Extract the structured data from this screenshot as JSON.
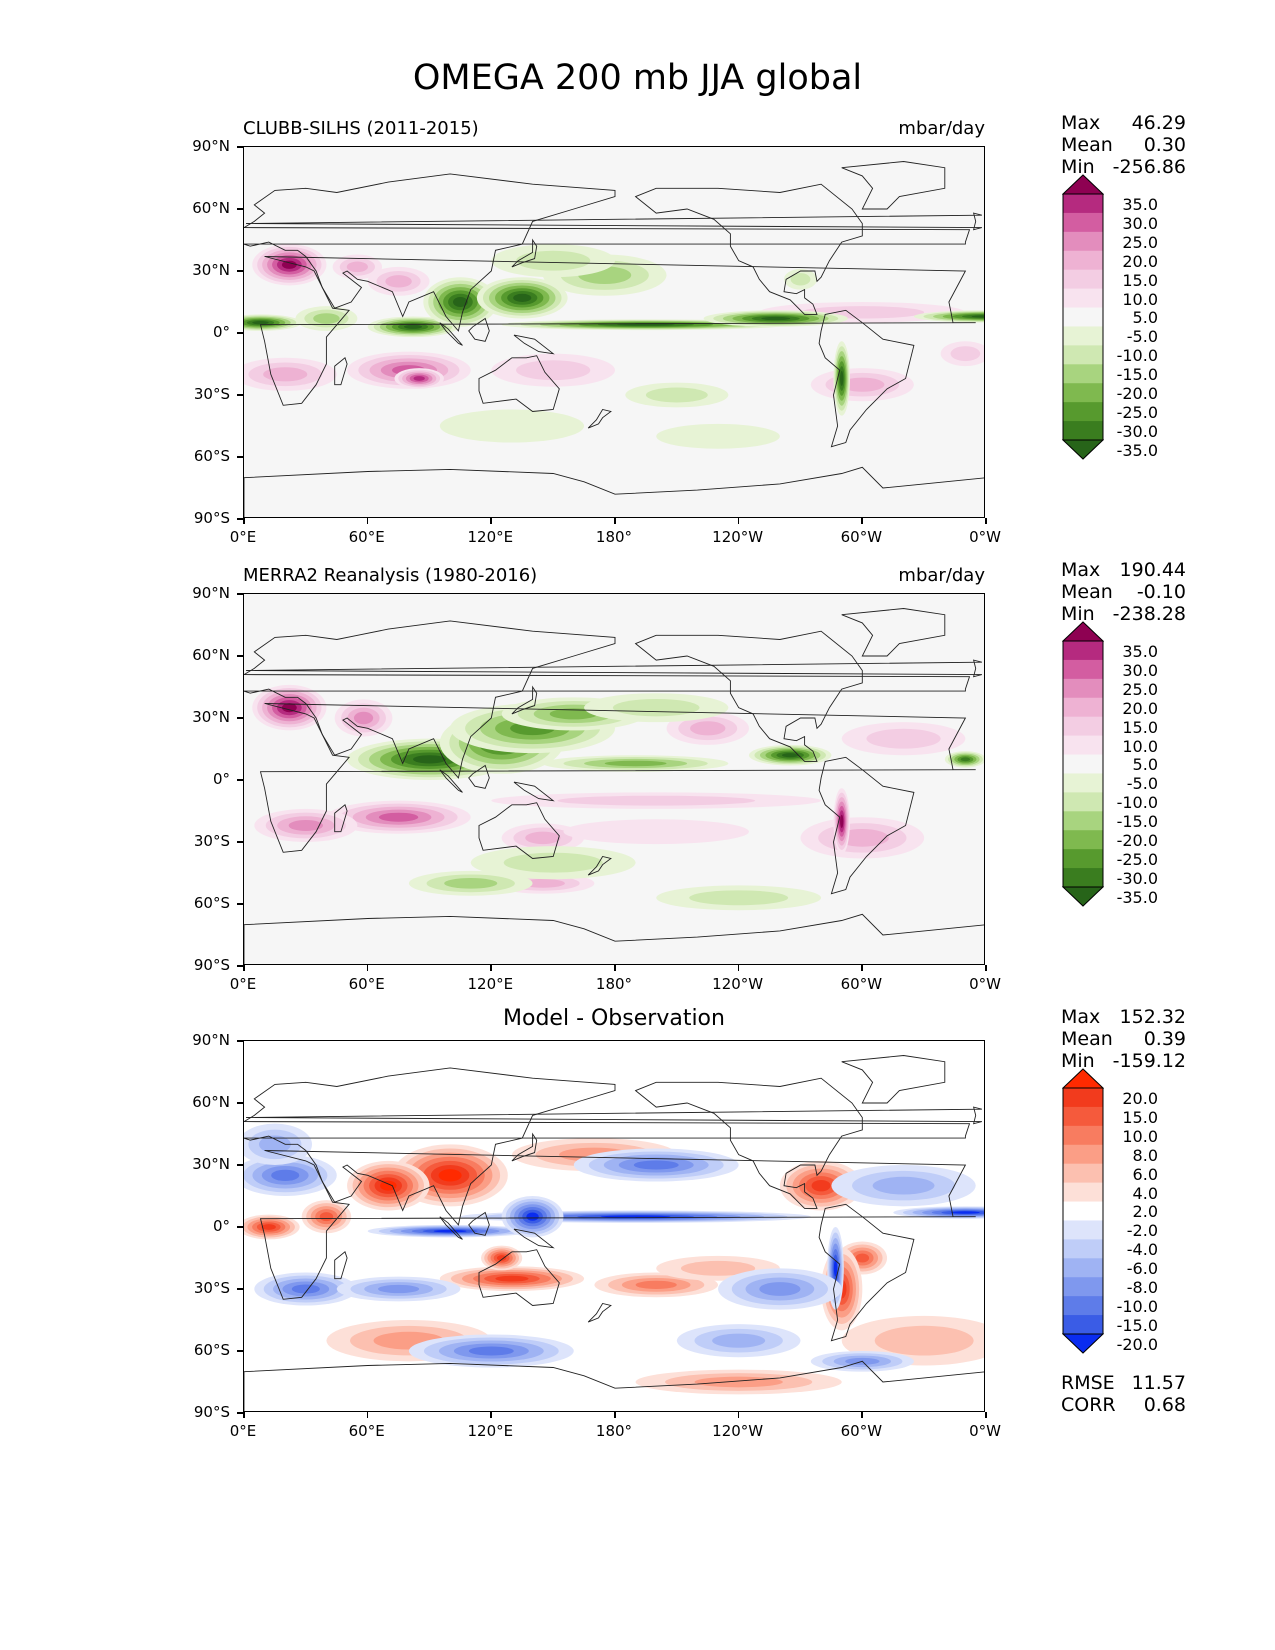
{
  "chart_data": [
    {
      "type": "heatmap",
      "title": "OMEGA 200 mb JJA global",
      "panel_title": "CLUBB-SILHS (2011-2015)",
      "units": "mbar/day",
      "stats": {
        "max_label": "Max",
        "max": "46.29",
        "mean_label": "Mean",
        "mean": "0.30",
        "min_label": "Min",
        "min": "-256.86"
      },
      "colorbar_levels": [
        "35.0",
        "30.0",
        "25.0",
        "20.0",
        "15.0",
        "10.0",
        "5.0",
        "-5.0",
        "-10.0",
        "-15.0",
        "-20.0",
        "-25.0",
        "-30.0",
        "-35.0"
      ],
      "yticks": [
        "90°N",
        "60°N",
        "30°N",
        "0°",
        "30°S",
        "60°S",
        "90°S"
      ],
      "xticks": [
        "0°E",
        "60°E",
        "120°E",
        "180°",
        "120°W",
        "60°W",
        "0°W"
      ],
      "xlim": [
        0,
        360
      ],
      "ylim": [
        -90,
        90
      ]
    },
    {
      "type": "heatmap",
      "panel_title": "MERRA2 Reanalysis (1980-2016)",
      "units": "mbar/day",
      "stats": {
        "max_label": "Max",
        "max": "190.44",
        "mean_label": "Mean",
        "mean": "-0.10",
        "min_label": "Min",
        "min": "-238.28"
      },
      "colorbar_levels": [
        "35.0",
        "30.0",
        "25.0",
        "20.0",
        "15.0",
        "10.0",
        "5.0",
        "-5.0",
        "-10.0",
        "-15.0",
        "-20.0",
        "-25.0",
        "-30.0",
        "-35.0"
      ],
      "yticks": [
        "90°N",
        "60°N",
        "30°N",
        "0°",
        "30°S",
        "60°S",
        "90°S"
      ],
      "xticks": [
        "0°E",
        "60°E",
        "120°E",
        "180°",
        "120°W",
        "60°W",
        "0°W"
      ],
      "xlim": [
        0,
        360
      ],
      "ylim": [
        -90,
        90
      ]
    },
    {
      "type": "heatmap",
      "panel_title": "Model - Observation",
      "stats": {
        "max_label": "Max",
        "max": "152.32",
        "mean_label": "Mean",
        "mean": "0.39",
        "min_label": "Min",
        "min": "-159.12"
      },
      "colorbar_levels": [
        "20.0",
        "15.0",
        "10.0",
        "8.0",
        "6.0",
        "4.0",
        "2.0",
        "-2.0",
        "-4.0",
        "-6.0",
        "-8.0",
        "-10.0",
        "-15.0",
        "-20.0"
      ],
      "metrics": {
        "rmse_label": "RMSE",
        "rmse": "11.57",
        "corr_label": "CORR",
        "corr": "0.68"
      },
      "yticks": [
        "90°N",
        "60°N",
        "30°N",
        "0°",
        "30°S",
        "60°S",
        "90°S"
      ],
      "xticks": [
        "0°E",
        "60°E",
        "120°E",
        "180°",
        "120°W",
        "60°W",
        "0°W"
      ],
      "xlim": [
        0,
        360
      ],
      "ylim": [
        -90,
        90
      ]
    }
  ],
  "colors": {
    "div_pink": [
      "#f6f6f6",
      "#f8e3ef",
      "#f3cde3",
      "#eeb2d3",
      "#e38dbd",
      "#d35da1",
      "#b52a7f",
      "#8e0152"
    ],
    "div_green": [
      "#f6f6f6",
      "#e7f3d5",
      "#cfe8b2",
      "#a8d47f",
      "#7fb94f",
      "#579a2e",
      "#3a7d1f",
      "#276419"
    ],
    "diff_red": [
      "#ffffff",
      "#fde0d8",
      "#fcc0b0",
      "#fb9e86",
      "#f87c60",
      "#f55a3c",
      "#f23b1d",
      "#ff2a00"
    ],
    "diff_blue": [
      "#ffffff",
      "#dde4fb",
      "#bfcdf8",
      "#9fb3f3",
      "#7f98ee",
      "#5e7ce9",
      "#3a5ce6",
      "#0a2cf0"
    ]
  }
}
